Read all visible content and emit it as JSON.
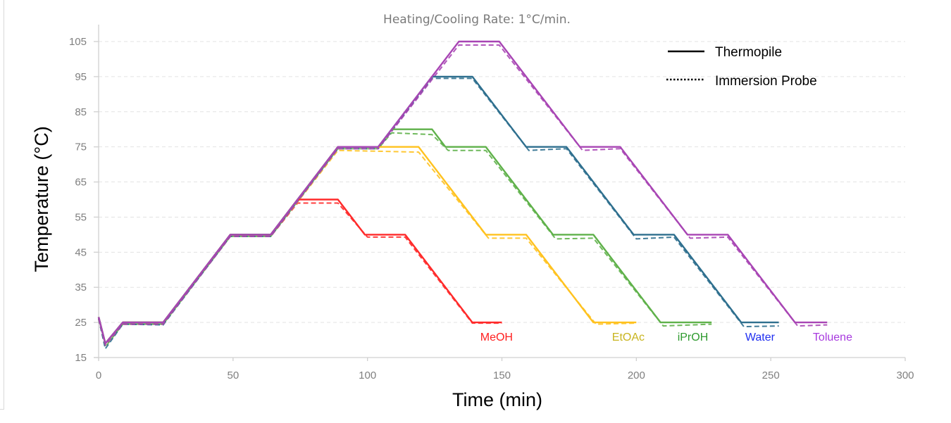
{
  "chart_data": {
    "type": "line",
    "title": "Heating/Cooling Rate: 1°C/min.",
    "xlabel": "Time (min)",
    "ylabel": "Temperature (°C)",
    "xlim": [
      0,
      300
    ],
    "ylim": [
      15,
      105
    ],
    "xticks": [
      0,
      50,
      100,
      150,
      200,
      250,
      300
    ],
    "yticks": [
      15,
      25,
      35,
      45,
      55,
      65,
      75,
      85,
      95,
      105
    ],
    "xtick_labels": [
      "0",
      "50",
      "100",
      "150",
      "200",
      "250",
      "300"
    ],
    "ytick_labels": [
      "15",
      "25",
      "35",
      "45",
      "55",
      "65",
      "75",
      "85",
      "95",
      "105"
    ],
    "grid": "horizontal-dashed",
    "legend": {
      "placement": "top-right",
      "entries": [
        {
          "label": "Thermopile",
          "style": "solid"
        },
        {
          "label": "Immersion Probe",
          "style": "dotted"
        }
      ]
    },
    "series": [
      {
        "name": "MeOH",
        "color": "#ff2a2a",
        "label_color": "#ff2020",
        "label_position": [
          148,
          21
        ],
        "thermopile": [
          [
            0,
            26.5
          ],
          [
            2.5,
            19
          ],
          [
            9,
            25
          ],
          [
            24,
            25
          ],
          [
            49,
            50
          ],
          [
            64,
            50
          ],
          [
            74,
            60
          ],
          [
            89,
            60
          ],
          [
            99,
            50
          ],
          [
            114,
            50
          ],
          [
            139,
            25
          ],
          [
            150,
            25
          ]
        ],
        "immersion_probe": [
          [
            0,
            26
          ],
          [
            2.5,
            18.5
          ],
          [
            9,
            24.5
          ],
          [
            24,
            24.5
          ],
          [
            49,
            49.5
          ],
          [
            64,
            49.5
          ],
          [
            74,
            59
          ],
          [
            89,
            59
          ],
          [
            100,
            49.3
          ],
          [
            114,
            49.3
          ],
          [
            139,
            24.8
          ],
          [
            150,
            24.8
          ]
        ]
      },
      {
        "name": "EtOAc",
        "color": "#ffc21f",
        "label_color": "#c8b41e",
        "label_position": [
          197,
          21
        ],
        "thermopile": [
          [
            0,
            26.5
          ],
          [
            2.5,
            19
          ],
          [
            9,
            25
          ],
          [
            24,
            25
          ],
          [
            49,
            50
          ],
          [
            64,
            50
          ],
          [
            89,
            75
          ],
          [
            119,
            75
          ],
          [
            144,
            50
          ],
          [
            159,
            50
          ],
          [
            184,
            25
          ],
          [
            200,
            25
          ]
        ],
        "immersion_probe": [
          [
            0,
            26
          ],
          [
            2.5,
            18.5
          ],
          [
            9,
            24.5
          ],
          [
            24,
            24.5
          ],
          [
            49,
            49.5
          ],
          [
            64,
            49.5
          ],
          [
            89,
            74
          ],
          [
            119,
            73.5
          ],
          [
            145,
            49
          ],
          [
            159,
            49
          ],
          [
            185,
            24.5
          ],
          [
            200,
            24.8
          ]
        ]
      },
      {
        "name": "iPrOH",
        "color": "#5fb14a",
        "label_color": "#2e9a2e",
        "label_position": [
          221,
          21
        ],
        "thermopile": [
          [
            0,
            26.5
          ],
          [
            2.5,
            19
          ],
          [
            9,
            25
          ],
          [
            24,
            25
          ],
          [
            49,
            50
          ],
          [
            64,
            50
          ],
          [
            89,
            75
          ],
          [
            104,
            75
          ],
          [
            109,
            80
          ],
          [
            124,
            80
          ],
          [
            129,
            75
          ],
          [
            144,
            75
          ],
          [
            169,
            50
          ],
          [
            184,
            50
          ],
          [
            209,
            25
          ],
          [
            228,
            25
          ]
        ],
        "immersion_probe": [
          [
            0,
            26
          ],
          [
            2.5,
            18
          ],
          [
            9,
            24.5
          ],
          [
            24,
            24.5
          ],
          [
            49,
            49.5
          ],
          [
            64,
            49.5
          ],
          [
            89,
            74.5
          ],
          [
            104,
            74.5
          ],
          [
            109,
            79
          ],
          [
            124,
            78.5
          ],
          [
            130,
            74
          ],
          [
            144,
            74
          ],
          [
            170,
            48.8
          ],
          [
            184,
            49
          ],
          [
            210,
            24
          ],
          [
            228,
            24.5
          ]
        ]
      },
      {
        "name": "Water",
        "color": "#2e6f8e",
        "label_color": "#1f2ef0",
        "label_position": [
          246,
          21
        ],
        "thermopile": [
          [
            0,
            26.5
          ],
          [
            2.5,
            19
          ],
          [
            9,
            25
          ],
          [
            24,
            25
          ],
          [
            49,
            50
          ],
          [
            64,
            50
          ],
          [
            89,
            75
          ],
          [
            104,
            75
          ],
          [
            124,
            95
          ],
          [
            139,
            95
          ],
          [
            159,
            75
          ],
          [
            174,
            75
          ],
          [
            199,
            50
          ],
          [
            214,
            50
          ],
          [
            239,
            25
          ],
          [
            253,
            25
          ]
        ],
        "immersion_probe": [
          [
            0,
            26
          ],
          [
            2.5,
            17.5
          ],
          [
            9,
            24.5
          ],
          [
            24,
            24.3
          ],
          [
            49,
            49.5
          ],
          [
            64,
            49.5
          ],
          [
            89,
            74.5
          ],
          [
            104,
            74.5
          ],
          [
            124,
            94.5
          ],
          [
            139,
            94.5
          ],
          [
            160,
            74
          ],
          [
            174,
            74.5
          ],
          [
            200,
            48.8
          ],
          [
            214,
            49.3
          ],
          [
            240,
            23.8
          ],
          [
            253,
            24
          ]
        ]
      },
      {
        "name": "Toluene",
        "color": "#a845b4",
        "label_color": "#a83adf",
        "label_position": [
          273,
          21
        ],
        "thermopile": [
          [
            0,
            26.5
          ],
          [
            2.5,
            19
          ],
          [
            9,
            25
          ],
          [
            24,
            25
          ],
          [
            49,
            50
          ],
          [
            64,
            50
          ],
          [
            89,
            75
          ],
          [
            104,
            75
          ],
          [
            134,
            105
          ],
          [
            149,
            105
          ],
          [
            179,
            75
          ],
          [
            194,
            75
          ],
          [
            219,
            50
          ],
          [
            234,
            50
          ],
          [
            259,
            25
          ],
          [
            271,
            25
          ]
        ],
        "immersion_probe": [
          [
            0,
            26
          ],
          [
            2.5,
            18.5
          ],
          [
            9,
            24.5
          ],
          [
            24,
            24.5
          ],
          [
            49,
            49.5
          ],
          [
            64,
            49.5
          ],
          [
            89,
            74.5
          ],
          [
            104,
            74.5
          ],
          [
            134,
            104
          ],
          [
            149,
            104
          ],
          [
            180,
            74
          ],
          [
            194,
            74.5
          ],
          [
            220,
            49
          ],
          [
            234,
            49.3
          ],
          [
            260,
            24
          ],
          [
            271,
            24.3
          ]
        ]
      }
    ]
  }
}
